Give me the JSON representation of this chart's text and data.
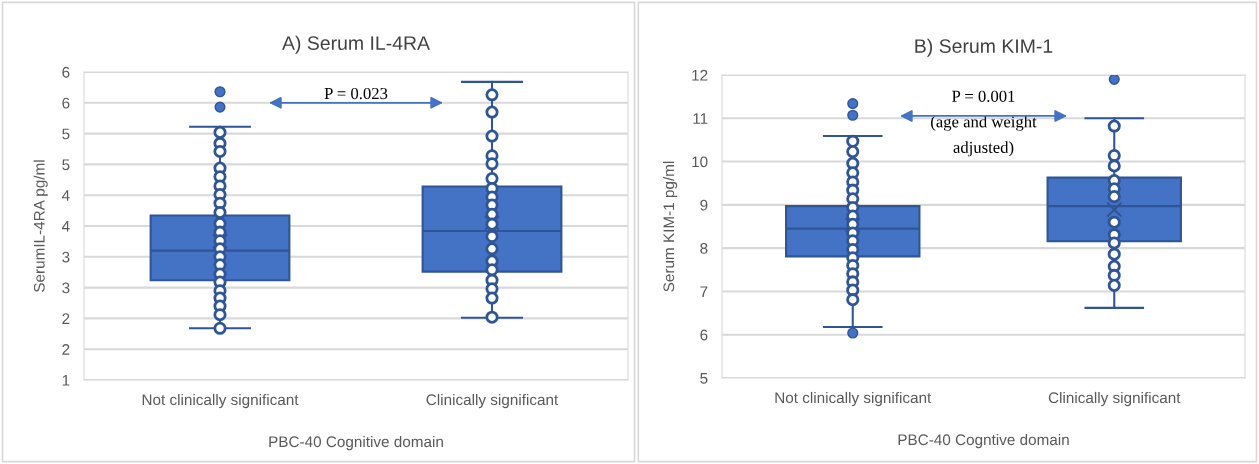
{
  "chart_data": [
    {
      "type": "box",
      "title": "A) Serum IL-4RA",
      "xlabel": "PBC-40 Cognitive domain",
      "ylabel": "SerumIL-4RA pg/ml",
      "categories": [
        "Not clinically significant",
        "Clinically significant"
      ],
      "color": "#4472c4",
      "boxes": [
        {
          "low": 1.84,
          "q1": 2.62,
          "median": 3.1,
          "q3": 3.67,
          "high": 5.11,
          "mean": 3.25,
          "outliers": [
            5.68,
            5.43
          ]
        },
        {
          "low": 2.01,
          "q1": 2.76,
          "median": 3.42,
          "q3": 4.14,
          "high": 5.84,
          "mean": 3.55
        }
      ],
      "series": [
        {
          "type": "scatter",
          "color": "#2f5597",
          "x": [
            "Not clinically significant",
            "Not clinically significant",
            "Not clinically significant",
            "Not clinically significant",
            "Not clinically significant",
            "Not clinically significant",
            "Not clinically significant",
            "Not clinically significant",
            "Not clinically significant",
            "Not clinically significant",
            "Not clinically significant",
            "Not clinically significant",
            "Not clinically significant",
            "Not clinically significant",
            "Not clinically significant",
            "Not clinically significant",
            "Not clinically significant",
            "Not clinically significant",
            "Not clinically significant",
            "Not clinically significant",
            "Not clinically significant",
            "Not clinically significant",
            "Clinically significant",
            "Clinically significant",
            "Clinically significant",
            "Clinically significant",
            "Clinically significant",
            "Clinically significant",
            "Clinically significant",
            "Clinically significant",
            "Clinically significant",
            "Clinically significant",
            "Clinically significant",
            "Clinically significant",
            "Clinically significant",
            "Clinically significant",
            "Clinically significant",
            "Clinically significant",
            "Clinically significant",
            "Clinically significant",
            "Clinically significant"
          ],
          "values": [
            5.02,
            4.84,
            4.71,
            4.44,
            4.3,
            4.15,
            4.01,
            3.87,
            3.72,
            3.54,
            3.4,
            3.26,
            3.13,
            3.0,
            2.87,
            2.72,
            2.59,
            2.45,
            2.33,
            2.2,
            2.06,
            1.84,
            5.63,
            5.35,
            4.96,
            4.64,
            4.51,
            4.27,
            4.11,
            3.97,
            3.84,
            3.69,
            3.53,
            3.33,
            3.13,
            2.93,
            2.79,
            2.62,
            2.48,
            2.33,
            2.02
          ]
        }
      ],
      "ylim": [
        1,
        6
      ],
      "yticks": [
        1,
        {
          "value": 1.5,
          "label": "2"
        },
        2,
        {
          "value": 2.5,
          "label": "3"
        },
        3,
        {
          "value": 3.5,
          "label": "4"
        },
        4,
        {
          "value": 4.5,
          "label": "5"
        },
        5,
        {
          "value": 5.5,
          "label": "6"
        },
        6
      ],
      "grid": "y",
      "marker": "circle",
      "annotations": [
        "P = 0.023"
      ]
    },
    {
      "type": "box",
      "title": "B) Serum KIM-1",
      "xlabel": "PBC-40 Cogntive domain",
      "ylabel": "Serum KIM-1 pg/ml",
      "categories": [
        "Not clinically significant",
        "Clinically significant"
      ],
      "color": "#4472c4",
      "boxes": [
        {
          "low": 6.18,
          "q1": 7.81,
          "median": 8.45,
          "q3": 8.97,
          "high": 10.59,
          "mean": 8.53,
          "outliers": [
            11.34,
            11.07,
            6.04
          ]
        },
        {
          "low": 6.62,
          "q1": 8.16,
          "median": 8.97,
          "q3": 9.63,
          "high": 11.0,
          "mean": 8.89,
          "outliers": [
            11.9
          ]
        }
      ],
      "series": [
        {
          "type": "scatter",
          "color": "#2f5597",
          "x": [
            "Not clinically significant",
            "Not clinically significant",
            "Not clinically significant",
            "Not clinically significant",
            "Not clinically significant",
            "Not clinically significant",
            "Not clinically significant",
            "Not clinically significant",
            "Not clinically significant",
            "Not clinically significant",
            "Not clinically significant",
            "Not clinically significant",
            "Not clinically significant",
            "Not clinically significant",
            "Not clinically significant",
            "Not clinically significant",
            "Not clinically significant",
            "Not clinically significant",
            "Not clinically significant",
            "Clinically significant",
            "Clinically significant",
            "Clinically significant",
            "Clinically significant",
            "Clinically significant",
            "Clinically significant",
            "Clinically significant",
            "Clinically significant",
            "Clinically significant",
            "Clinically significant",
            "Clinically significant",
            "Clinically significant",
            "Clinically significant"
          ],
          "values": [
            10.47,
            10.23,
            9.96,
            9.74,
            9.53,
            9.34,
            9.14,
            8.94,
            8.74,
            8.55,
            8.35,
            8.17,
            7.97,
            7.78,
            7.6,
            7.41,
            7.22,
            7.03,
            6.81,
            10.82,
            10.14,
            9.9,
            9.56,
            9.37,
            9.19,
            8.6,
            8.31,
            8.12,
            7.86,
            7.58,
            7.37,
            7.14
          ]
        }
      ],
      "ylim": [
        5,
        12
      ],
      "yticks": [
        5,
        6,
        7,
        8,
        9,
        10,
        11,
        12
      ],
      "grid": "y",
      "marker": "circle",
      "annotations": [
        "P = 0.001\n(age and weight\nadjusted)"
      ]
    }
  ]
}
